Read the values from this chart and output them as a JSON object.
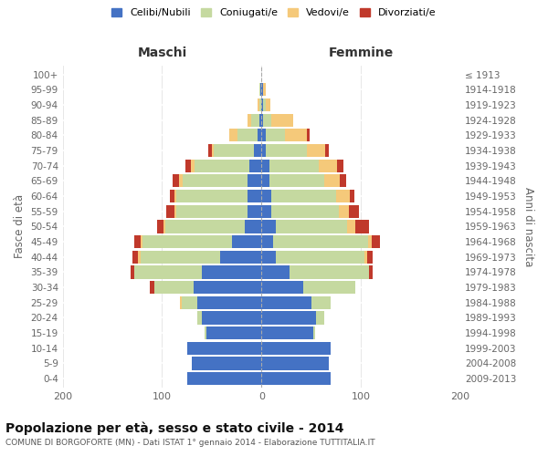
{
  "age_groups": [
    "0-4",
    "5-9",
    "10-14",
    "15-19",
    "20-24",
    "25-29",
    "30-34",
    "35-39",
    "40-44",
    "45-49",
    "50-54",
    "55-59",
    "60-64",
    "65-69",
    "70-74",
    "75-79",
    "80-84",
    "85-89",
    "90-94",
    "95-99",
    "100+"
  ],
  "birth_years": [
    "2009-2013",
    "2004-2008",
    "1999-2003",
    "1994-1998",
    "1989-1993",
    "1984-1988",
    "1979-1983",
    "1974-1978",
    "1969-1973",
    "1964-1968",
    "1959-1963",
    "1954-1958",
    "1949-1953",
    "1944-1948",
    "1939-1943",
    "1934-1938",
    "1929-1933",
    "1924-1928",
    "1919-1923",
    "1914-1918",
    "≤ 1913"
  ],
  "maschi": {
    "celibi": [
      75,
      70,
      75,
      55,
      60,
      65,
      68,
      60,
      42,
      30,
      17,
      14,
      14,
      14,
      12,
      8,
      4,
      2,
      0,
      1,
      0
    ],
    "coniugati": [
      0,
      0,
      0,
      2,
      5,
      15,
      40,
      68,
      80,
      90,
      80,
      72,
      72,
      65,
      55,
      40,
      20,
      8,
      2,
      1,
      0
    ],
    "vedovi": [
      0,
      0,
      0,
      0,
      0,
      2,
      0,
      0,
      2,
      2,
      2,
      2,
      2,
      4,
      4,
      2,
      8,
      4,
      2,
      0,
      0
    ],
    "divorziati": [
      0,
      0,
      0,
      0,
      0,
      0,
      4,
      4,
      6,
      6,
      6,
      8,
      4,
      6,
      6,
      4,
      0,
      0,
      0,
      0,
      0
    ]
  },
  "femmine": {
    "nubili": [
      70,
      68,
      70,
      52,
      55,
      50,
      42,
      28,
      14,
      12,
      14,
      10,
      10,
      8,
      8,
      4,
      4,
      2,
      2,
      2,
      0
    ],
    "coniugate": [
      0,
      0,
      0,
      2,
      8,
      20,
      52,
      80,
      90,
      95,
      72,
      68,
      65,
      55,
      50,
      42,
      20,
      8,
      2,
      0,
      0
    ],
    "vedove": [
      0,
      0,
      0,
      0,
      0,
      0,
      0,
      0,
      2,
      4,
      8,
      10,
      14,
      16,
      18,
      18,
      22,
      22,
      5,
      2,
      0
    ],
    "divorziate": [
      0,
      0,
      0,
      0,
      0,
      0,
      0,
      4,
      6,
      8,
      14,
      10,
      4,
      6,
      6,
      4,
      2,
      0,
      0,
      0,
      0
    ]
  },
  "colors": {
    "celibi": "#4472C4",
    "coniugati": "#C5D9A0",
    "vedovi": "#F5C97A",
    "divorziati": "#C0392B"
  },
  "xlim": 200,
  "title": "Popolazione per età, sesso e stato civile - 2014",
  "subtitle": "COMUNE DI BORGOFORTE (MN) - Dati ISTAT 1° gennaio 2014 - Elaborazione TUTTITALIA.IT",
  "ylabel": "Fasce di età",
  "ylabel_right": "Anni di nascita",
  "legend_labels": [
    "Celibi/Nubili",
    "Coniugati/e",
    "Vedovi/e",
    "Divorziati/e"
  ],
  "maschi_label": "Maschi",
  "femmine_label": "Femmine",
  "bg_color": "#ffffff",
  "plot_bg": "#ffffff"
}
